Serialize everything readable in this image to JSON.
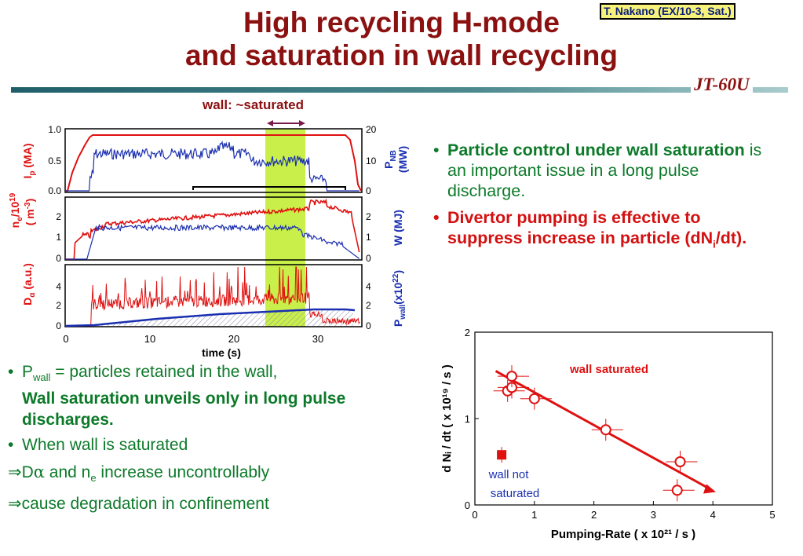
{
  "slide": {
    "title_line1": "High recycling H-mode",
    "title_line2": "and saturation in wall recycling",
    "badge": "T. Nakano (EX/10-3, Sat.)",
    "logo": "JT-60U",
    "wall_saturated_label": "wall: ~saturated"
  },
  "colors": {
    "title": "#8b1010",
    "green_text": "#0d7a2a",
    "red_text": "#d41010",
    "blue_axis": "#1a2fb0",
    "highlight": "#c9f04a"
  },
  "right_bullets": [
    {
      "bold": "Particle control under wall saturation",
      "rest": " is an important issue in a long pulse discharge."
    },
    {
      "text": "Divertor pumping is effective to suppress increase in particle (dN",
      "sub": "i",
      "tail": "/dt)."
    }
  ],
  "left_bullets": {
    "b1_pre": "P",
    "b1_sub": "wall",
    "b1_rest": " = particles retained in the wall,",
    "b1_bold": "Wall saturation unveils only in long pulse discharges.",
    "b2": "When wall is saturated",
    "l3_arrow": "⇒",
    "l3_a": "D",
    "l3_alpha": "α",
    "l3_b": " and n",
    "l3_sub": "e",
    "l3_c": " increase uncontrollably",
    "l4_arrow": "⇒",
    "l4": "cause degradation in confinement"
  },
  "left_chart": {
    "panel1": {
      "left_ticks": [
        "1.0",
        "0.5",
        "0.0"
      ],
      "right_ticks": [
        "20",
        "10",
        "0"
      ]
    },
    "panel2": {
      "left_ticks": [
        "2",
        "1",
        "0"
      ],
      "right_ticks": [
        "2",
        "1",
        "0"
      ]
    },
    "panel3": {
      "left_ticks": [
        "4",
        "2",
        "0"
      ],
      "right_ticks": [
        "4",
        "2",
        "0"
      ]
    },
    "x_ticks": [
      "0",
      "10",
      "20",
      "30"
    ],
    "xlabel": "time (s)",
    "label_ip_a": "I",
    "label_ip_b": "p",
    "label_ip_c": " (MA)",
    "label_pnb_a": "P",
    "label_pnb_b": "NB",
    "label_pnb_c": "(MW)",
    "label_ne_a": "n",
    "label_ne_b": "e",
    "label_ne_c": "/10",
    "label_ne_d": "19",
    "label_ne_unit_a": "( m",
    "label_ne_unit_b": "-3",
    "label_ne_unit_c": ")",
    "label_w": "W (MJ)",
    "label_da_a": "D",
    "label_da_b": "α",
    "label_da_c": " (a.u.)",
    "label_pw_a": "P",
    "label_pw_b": "wall",
    "label_pw_c": "(x10",
    "label_pw_d": "22",
    "label_pw_e": ")"
  },
  "chart_data": {
    "type": "scatter",
    "xlabel": "Pumping-Rate ( x 10²¹ / s )",
    "ylabel": "d Nᵢ / dt ( x 10¹⁹ / s )",
    "xlim": [
      0,
      5
    ],
    "ylim": [
      0,
      2
    ],
    "x_ticks": [
      "0",
      "1",
      "2",
      "3",
      "4",
      "5"
    ],
    "y_ticks": [
      "0",
      "1",
      "2"
    ],
    "series": [
      {
        "name": "wall saturated",
        "points": [
          [
            0.55,
            1.32
          ],
          [
            0.62,
            1.36
          ],
          [
            0.62,
            1.49
          ],
          [
            1.0,
            1.23
          ],
          [
            2.2,
            0.87
          ],
          [
            3.45,
            0.5
          ],
          [
            3.4,
            0.17
          ]
        ]
      },
      {
        "name": "wall not saturated",
        "points": [
          [
            0.45,
            0.58
          ]
        ]
      }
    ],
    "trend_line": [
      [
        0.35,
        1.55
      ],
      [
        4.05,
        0.15
      ]
    ],
    "annotations": [
      "wall saturated",
      "wall not",
      "saturated"
    ]
  }
}
